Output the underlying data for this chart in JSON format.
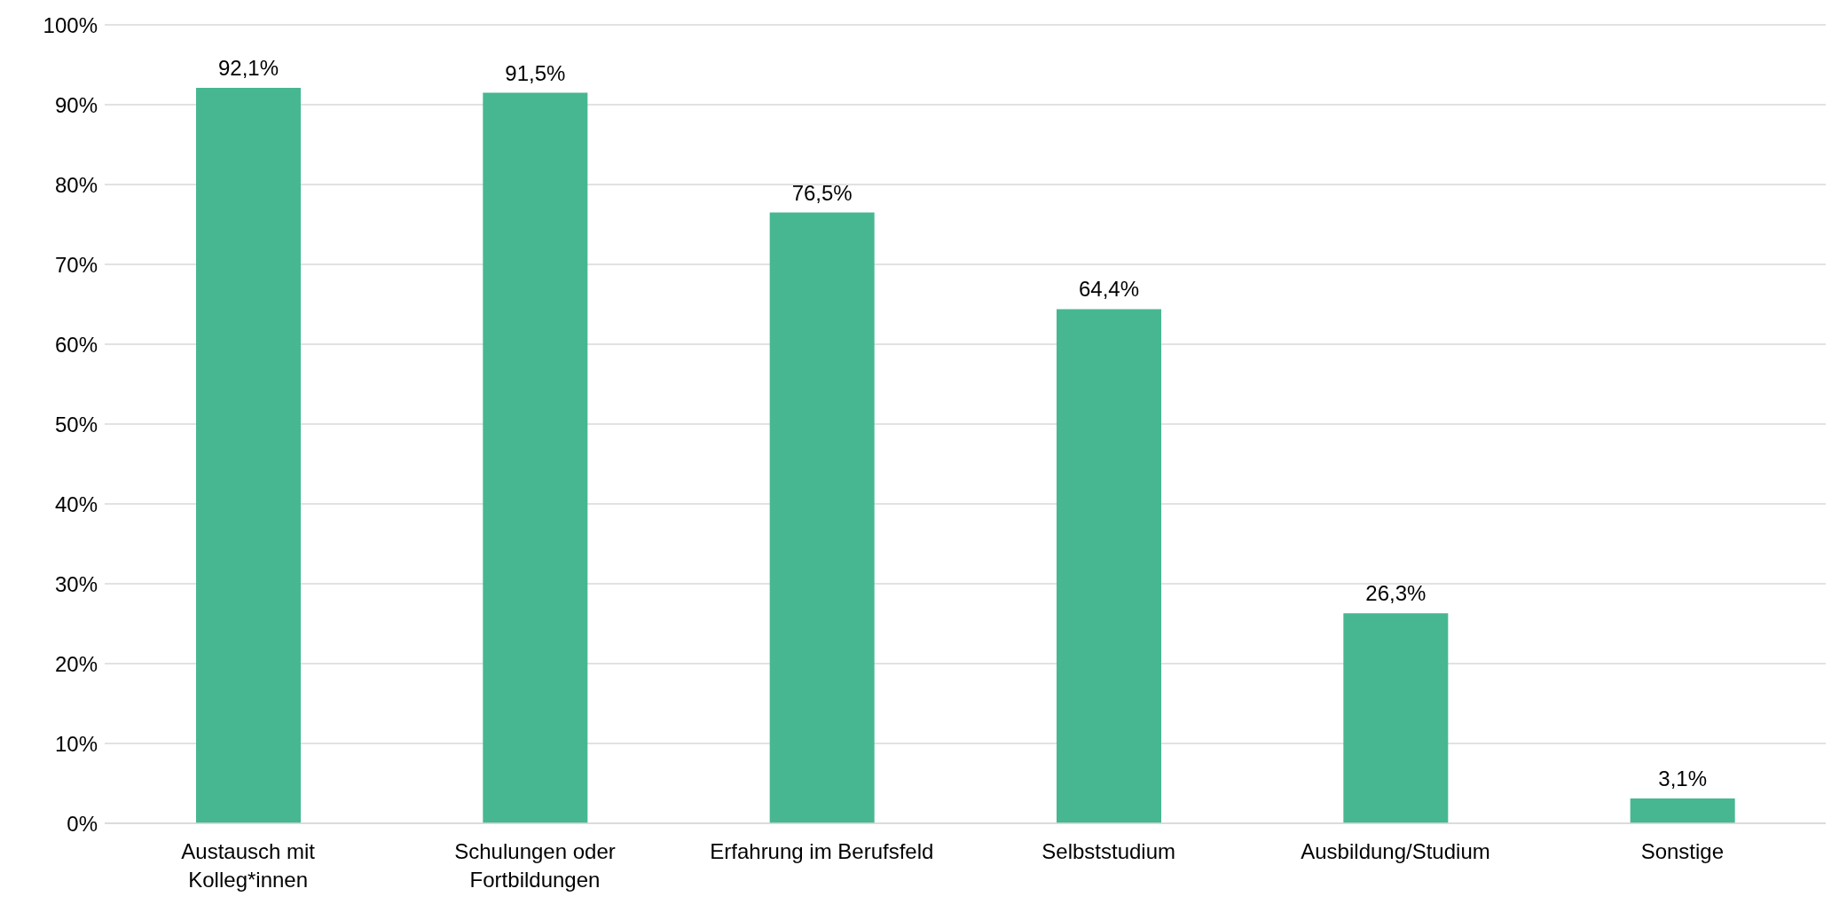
{
  "chart_data": {
    "type": "bar",
    "categories": [
      "Austausch mit Kolleg*innen",
      "Schulungen oder Fortbildungen",
      "Erfahrung im Berufsfeld",
      "Selbststudium",
      "Ausbildung/Studium",
      "Sonstige"
    ],
    "values": [
      92.1,
      91.5,
      76.5,
      64.4,
      26.3,
      3.1
    ],
    "value_labels": [
      "92,1%",
      "91,5%",
      "76,5%",
      "64,4%",
      "26,3%",
      "3,1%"
    ],
    "color": "#47b792",
    "ylim": [
      0,
      100
    ],
    "yticks": [
      {
        "value": 0,
        "label": "0%"
      },
      {
        "value": 10,
        "label": "10%"
      },
      {
        "value": 20,
        "label": "20%"
      },
      {
        "value": 30,
        "label": "30%"
      },
      {
        "value": 40,
        "label": "40%"
      },
      {
        "value": 50,
        "label": "50%"
      },
      {
        "value": 60,
        "label": "60%"
      },
      {
        "value": 70,
        "label": "70%"
      },
      {
        "value": 80,
        "label": "80%"
      },
      {
        "value": 90,
        "label": "90%"
      },
      {
        "value": 100,
        "label": "100%"
      }
    ],
    "grid": "y"
  }
}
